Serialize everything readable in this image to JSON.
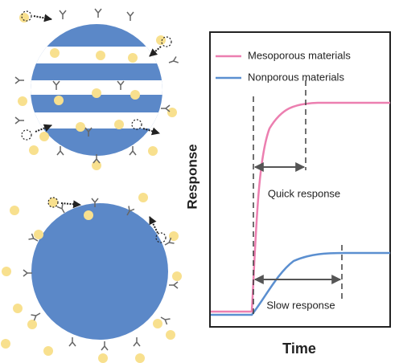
{
  "y_label": "Response",
  "x_label": "Time",
  "legend": [
    "Mesoporous materials",
    "Nonporous materials"
  ],
  "annotations": [
    "Quick response",
    "Slow response"
  ]
}
